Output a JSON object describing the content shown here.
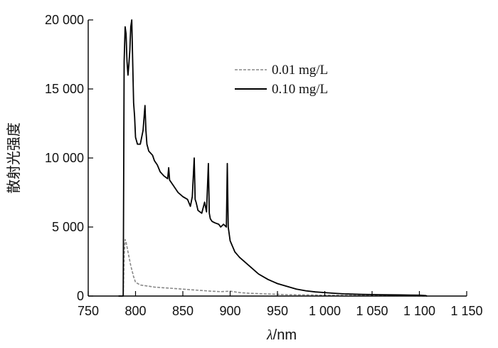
{
  "chart_data": {
    "type": "line",
    "xlabel": "λ/nm",
    "ylabel": "散射光强度",
    "xlim": [
      750,
      1150
    ],
    "ylim": [
      0,
      20000
    ],
    "xticks": [
      750,
      800,
      850,
      900,
      950,
      1000,
      1050,
      1100,
      1150
    ],
    "xtick_labels": [
      "750",
      "800",
      "850",
      "900",
      "950",
      "1 000",
      "1 050",
      "1 100",
      "1 150"
    ],
    "yticks": [
      0,
      5000,
      10000,
      15000,
      20000
    ],
    "ytick_labels": [
      "0",
      "5 000",
      "10 000",
      "15 000",
      "20 000"
    ],
    "grid": false,
    "legend_position": "top-right",
    "series": [
      {
        "name": "0.01 mg/L",
        "style": "dashed",
        "color": "#888888",
        "x": [
          782,
          787,
          788,
          789,
          790,
          792,
          795,
          798,
          800,
          805,
          810,
          820,
          830,
          840,
          850,
          860,
          870,
          880,
          890,
          900,
          910,
          920,
          940,
          960,
          980,
          1000,
          1020,
          1040,
          1060,
          1080,
          1100,
          1108
        ],
        "y": [
          0,
          0,
          3000,
          4100,
          3900,
          3200,
          2200,
          1400,
          1000,
          800,
          750,
          650,
          600,
          550,
          500,
          450,
          400,
          350,
          320,
          350,
          250,
          200,
          150,
          100,
          80,
          60,
          50,
          40,
          30,
          20,
          10,
          0
        ]
      },
      {
        "name": "0.10 mg/L",
        "style": "solid",
        "color": "#000000",
        "x": [
          782,
          784,
          786,
          787,
          788,
          789,
          790,
          791,
          792,
          793,
          794,
          795,
          796,
          797,
          798,
          799,
          800,
          802,
          805,
          808,
          810,
          811,
          812,
          814,
          818,
          820,
          823,
          826,
          830,
          834,
          835,
          836,
          840,
          845,
          850,
          855,
          858,
          860,
          862,
          863,
          864,
          866,
          870,
          873,
          875,
          877,
          878,
          879,
          881,
          884,
          888,
          890,
          893,
          896,
          897,
          898,
          900,
          905,
          910,
          920,
          930,
          940,
          950,
          960,
          970,
          980,
          990,
          1000,
          1010,
          1020,
          1030,
          1040,
          1050,
          1060,
          1070,
          1080,
          1090,
          1100,
          1107,
          1108
        ],
        "y": [
          0,
          0,
          0,
          0,
          17000,
          19500,
          19000,
          17000,
          16000,
          16800,
          17800,
          19500,
          20000,
          17000,
          14000,
          13000,
          11500,
          11000,
          11000,
          12000,
          13800,
          12000,
          11000,
          10500,
          10200,
          9800,
          9500,
          9000,
          8700,
          8500,
          9300,
          8400,
          8000,
          7500,
          7200,
          7000,
          6500,
          7200,
          10000,
          7000,
          6800,
          6200,
          6000,
          6800,
          6100,
          9600,
          6000,
          5600,
          5400,
          5300,
          5200,
          5000,
          5200,
          5000,
          9600,
          5000,
          4000,
          3200,
          2800,
          2200,
          1600,
          1200,
          900,
          700,
          500,
          380,
          300,
          250,
          200,
          160,
          140,
          120,
          110,
          100,
          90,
          80,
          70,
          60,
          30,
          0
        ]
      }
    ]
  }
}
